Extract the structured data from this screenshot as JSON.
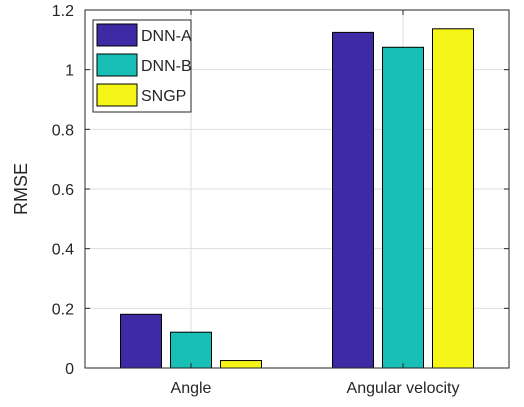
{
  "chart_data": {
    "type": "bar",
    "categories": [
      "Angle",
      "Angular velocity"
    ],
    "series": [
      {
        "name": "DNN-A",
        "values": [
          0.18,
          1.125
        ],
        "color": "#3f2aa6"
      },
      {
        "name": "DNN-B",
        "values": [
          0.12,
          1.075
        ],
        "color": "#17bfb6"
      },
      {
        "name": "SNGP",
        "values": [
          0.025,
          1.137
        ],
        "color": "#f5f518"
      }
    ],
    "title": "",
    "xlabel": "",
    "ylabel": "RMSE",
    "ylim": [
      0,
      1.2
    ],
    "yticks": [
      "0",
      "0.2",
      "0.4",
      "0.6",
      "0.8",
      "1",
      "1.2"
    ],
    "grid": true,
    "legend_position": "top-left"
  }
}
